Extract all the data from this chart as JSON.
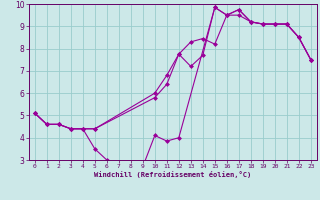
{
  "xlabel": "Windchill (Refroidissement éolien,°C)",
  "xlim": [
    -0.5,
    23.5
  ],
  "ylim": [
    3,
    10
  ],
  "xticks": [
    0,
    1,
    2,
    3,
    4,
    5,
    6,
    7,
    8,
    9,
    10,
    11,
    12,
    13,
    14,
    15,
    16,
    17,
    18,
    19,
    20,
    21,
    22,
    23
  ],
  "yticks": [
    3,
    4,
    5,
    6,
    7,
    8,
    9,
    10
  ],
  "bg_color": "#cce8e8",
  "grid_color": "#99cccc",
  "line_color": "#990099",
  "line1_x": [
    0,
    1,
    2,
    3,
    4,
    5,
    6,
    7,
    8,
    9,
    10,
    11,
    12,
    15,
    16,
    17,
    18,
    19,
    20,
    21,
    22,
    23
  ],
  "line1_y": [
    5.1,
    4.6,
    4.6,
    4.4,
    4.4,
    3.5,
    3.0,
    2.9,
    2.7,
    2.7,
    4.1,
    3.85,
    4.0,
    9.85,
    9.5,
    9.75,
    9.2,
    9.1,
    9.1,
    9.1,
    8.5,
    7.5
  ],
  "line2_x": [
    0,
    1,
    2,
    3,
    4,
    5,
    10,
    11,
    12,
    13,
    14,
    15,
    16,
    17,
    18,
    19,
    20,
    21,
    22,
    23
  ],
  "line2_y": [
    5.1,
    4.6,
    4.6,
    4.4,
    4.4,
    4.4,
    5.8,
    6.4,
    7.75,
    8.3,
    8.45,
    8.2,
    9.5,
    9.5,
    9.2,
    9.1,
    9.1,
    9.1,
    8.5,
    7.5
  ],
  "line3_x": [
    0,
    1,
    2,
    3,
    4,
    5,
    10,
    11,
    12,
    13,
    14,
    15,
    16,
    17,
    18,
    19,
    20,
    21,
    22,
    23
  ],
  "line3_y": [
    5.1,
    4.6,
    4.6,
    4.4,
    4.4,
    4.4,
    6.0,
    6.8,
    7.75,
    7.2,
    7.7,
    9.85,
    9.5,
    9.75,
    9.2,
    9.1,
    9.1,
    9.1,
    8.5,
    7.5
  ]
}
